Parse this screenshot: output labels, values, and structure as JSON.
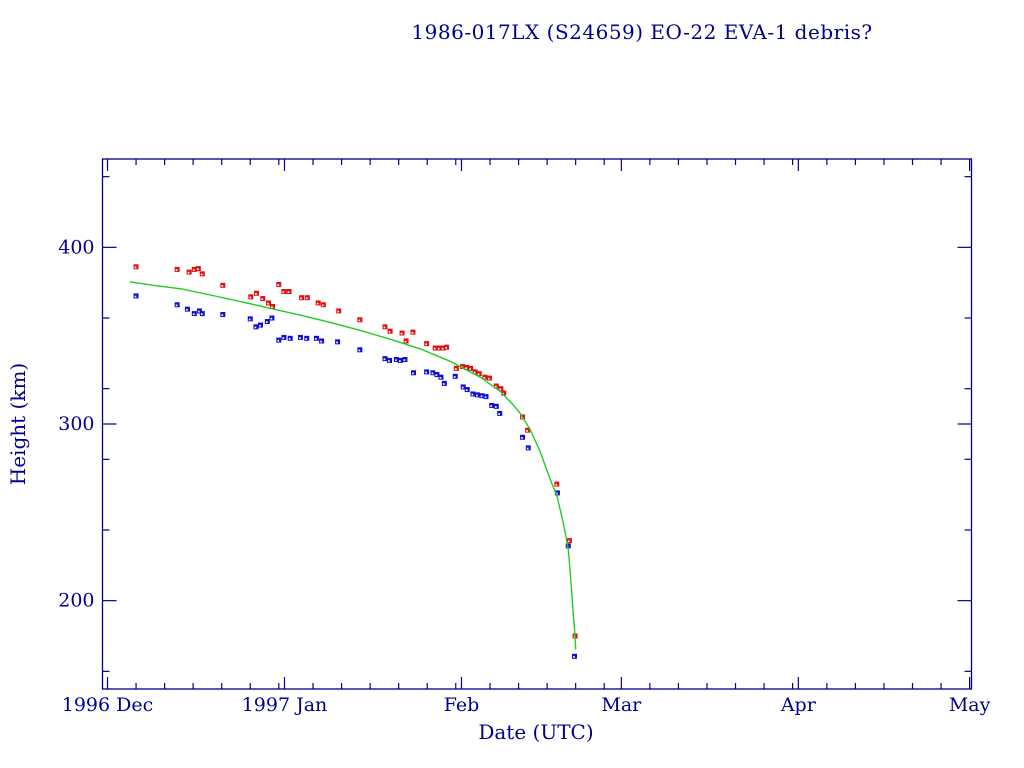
{
  "chart_data": {
    "type": "scatter",
    "title": "1986-017LX (S24659) EO-22 EVA-1 debris?",
    "xlabel": "Date (UTC)",
    "ylabel": "Height (km)",
    "colors": {
      "axis": "#00008b",
      "text": "#00008b",
      "background": "#ffffff",
      "red_series": "#e01010",
      "blue_series": "#1010cc",
      "green_curve": "#22cc22",
      "marker_dot": "#ffffff"
    },
    "x_axis": {
      "unit": "days since 1996 Dec 1",
      "range": [
        0,
        151
      ],
      "month_ticks": [
        {
          "label": "1996 Dec",
          "day": 0
        },
        {
          "label": "1997 Jan",
          "day": 31
        },
        {
          "label": "Feb",
          "day": 62
        },
        {
          "label": "Mar",
          "day": 90
        },
        {
          "label": "Apr",
          "day": 121
        },
        {
          "label": "May",
          "day": 151
        }
      ],
      "minor_tick_days": [
        5,
        10,
        15,
        20,
        25,
        30,
        36,
        41,
        46,
        51,
        56,
        61,
        67,
        72,
        77,
        82,
        87,
        95,
        100,
        105,
        110,
        115,
        120,
        126,
        131,
        136,
        141,
        146
      ]
    },
    "y_axis": {
      "range": [
        150,
        450
      ],
      "major_ticks": [
        200,
        300,
        400
      ],
      "minor_step": 20,
      "grid": false
    },
    "legend": "none",
    "series": [
      {
        "name": "red-squares (upper heights)",
        "style": "scatter",
        "marker": "square",
        "color_key": "red_series",
        "points": [
          [
            5.0,
            389
          ],
          [
            12.2,
            387.5
          ],
          [
            14.3,
            386
          ],
          [
            15.2,
            387.5
          ],
          [
            15.9,
            388
          ],
          [
            16.6,
            385
          ],
          [
            20.2,
            378.5
          ],
          [
            25.1,
            372
          ],
          [
            26.1,
            374
          ],
          [
            27.2,
            371
          ],
          [
            28.2,
            368.5
          ],
          [
            28.9,
            366.5
          ],
          [
            30.0,
            379
          ],
          [
            30.9,
            375
          ],
          [
            31.8,
            375
          ],
          [
            34.0,
            371.5
          ],
          [
            35.0,
            371.5
          ],
          [
            36.9,
            368.5
          ],
          [
            37.8,
            367.5
          ],
          [
            40.5,
            364
          ],
          [
            44.2,
            359
          ],
          [
            48.6,
            355
          ],
          [
            49.5,
            352.5
          ],
          [
            51.6,
            351.5
          ],
          [
            52.3,
            347
          ],
          [
            53.5,
            352
          ],
          [
            55.9,
            345.5
          ],
          [
            57.4,
            343
          ],
          [
            58.1,
            343
          ],
          [
            58.8,
            343
          ],
          [
            59.4,
            343.5
          ],
          [
            61.1,
            331.5
          ],
          [
            62.2,
            332.5
          ],
          [
            62.9,
            332
          ],
          [
            63.6,
            331.5
          ],
          [
            64.4,
            329.5
          ],
          [
            65.1,
            328.5
          ],
          [
            66.1,
            326.5
          ],
          [
            66.9,
            326
          ],
          [
            68.1,
            321.5
          ],
          [
            68.9,
            320
          ],
          [
            69.4,
            317.5
          ],
          [
            72.7,
            304
          ],
          [
            73.6,
            296.5
          ],
          [
            78.7,
            266
          ],
          [
            80.9,
            234
          ],
          [
            81.9,
            180
          ]
        ]
      },
      {
        "name": "blue-squares (lower heights)",
        "style": "scatter",
        "marker": "square",
        "color_key": "blue_series",
        "points": [
          [
            5.0,
            372.5
          ],
          [
            12.2,
            367.5
          ],
          [
            14.0,
            365
          ],
          [
            15.2,
            362.5
          ],
          [
            16.1,
            364
          ],
          [
            16.6,
            362.5
          ],
          [
            20.2,
            362
          ],
          [
            25.0,
            359.5
          ],
          [
            26.0,
            355
          ],
          [
            26.8,
            356
          ],
          [
            28.0,
            358
          ],
          [
            28.8,
            360
          ],
          [
            30.0,
            347.5
          ],
          [
            30.9,
            349
          ],
          [
            32.0,
            348.5
          ],
          [
            33.8,
            349
          ],
          [
            34.9,
            348.5
          ],
          [
            36.6,
            348.5
          ],
          [
            37.5,
            347
          ],
          [
            40.3,
            346.5
          ],
          [
            44.2,
            342
          ],
          [
            48.6,
            337
          ],
          [
            49.4,
            336
          ],
          [
            50.6,
            336.5
          ],
          [
            51.3,
            336
          ],
          [
            52.1,
            336.5
          ],
          [
            53.6,
            329
          ],
          [
            55.9,
            329.5
          ],
          [
            57.0,
            329
          ],
          [
            57.7,
            328
          ],
          [
            58.4,
            326.5
          ],
          [
            59.0,
            323
          ],
          [
            60.9,
            327
          ],
          [
            62.3,
            321
          ],
          [
            63.0,
            319.5
          ],
          [
            64.0,
            317
          ],
          [
            64.8,
            316.5
          ],
          [
            65.6,
            316
          ],
          [
            66.3,
            315.5
          ],
          [
            67.3,
            310.5
          ],
          [
            68.1,
            310
          ],
          [
            68.7,
            306
          ],
          [
            72.7,
            292.5
          ],
          [
            73.7,
            286.5
          ],
          [
            78.8,
            261
          ],
          [
            80.7,
            231
          ],
          [
            81.8,
            168.5
          ]
        ]
      },
      {
        "name": "green-model-curve",
        "style": "line",
        "color_key": "green_curve",
        "points": [
          [
            3.9,
            380.5
          ],
          [
            8,
            378.5
          ],
          [
            13,
            376.5
          ],
          [
            18,
            373
          ],
          [
            23,
            369.5
          ],
          [
            28.5,
            365.5
          ],
          [
            34,
            361.5
          ],
          [
            39,
            357.5
          ],
          [
            44.3,
            353
          ],
          [
            49.5,
            348
          ],
          [
            54.8,
            342.5
          ],
          [
            60,
            335.5
          ],
          [
            65.3,
            326.5
          ],
          [
            68.8,
            318.5
          ],
          [
            71,
            311
          ],
          [
            72.3,
            306
          ],
          [
            74,
            297
          ],
          [
            75.7,
            285
          ],
          [
            77.5,
            269
          ],
          [
            78.7,
            259.5
          ],
          [
            79.8,
            244.5
          ],
          [
            80.7,
            229.5
          ],
          [
            81.0,
            218
          ],
          [
            81.3,
            205
          ],
          [
            81.6,
            191.5
          ],
          [
            81.9,
            179.5
          ],
          [
            82.0,
            172.5
          ]
        ]
      }
    ]
  }
}
